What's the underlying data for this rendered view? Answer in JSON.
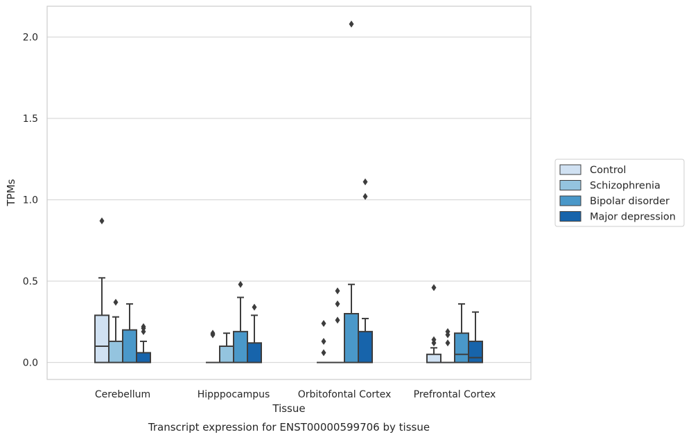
{
  "chart_data": {
    "type": "box",
    "caption": "Transcript expression for ENST00000599706 by tissue",
    "xlabel": "Tissue",
    "ylabel": "TPMs",
    "ylim": [
      -0.1,
      2.19
    ],
    "yticks": [
      0.0,
      0.5,
      1.0,
      1.5,
      2.0
    ],
    "ytick_labels": [
      "0.0",
      "0.5",
      "1.0",
      "1.5",
      "2.0"
    ],
    "grid": "horizontal",
    "legend_position": "right",
    "categories": [
      "Cerebellum",
      "Hipppocampus",
      "Orbitofontal Cortex",
      "Prefrontal Cortex"
    ],
    "series": [
      {
        "name": "Control",
        "color": "#d0e1f2",
        "boxes": [
          {
            "q1": 0.0,
            "median": 0.1,
            "q3": 0.29,
            "whisker_low": 0.0,
            "whisker_high": 0.52,
            "outliers": [
              0.87
            ]
          },
          {
            "q1": 0.0,
            "median": 0.0,
            "q3": 0.0,
            "whisker_low": 0.0,
            "whisker_high": 0.0,
            "outliers": [
              0.17,
              0.18
            ]
          },
          {
            "q1": 0.0,
            "median": 0.0,
            "q3": 0.0,
            "whisker_low": 0.0,
            "whisker_high": 0.0,
            "outliers": [
              0.06,
              0.13,
              0.24
            ]
          },
          {
            "q1": 0.0,
            "median": 0.0,
            "q3": 0.05,
            "whisker_low": 0.0,
            "whisker_high": 0.09,
            "outliers": [
              0.12,
              0.14,
              0.46
            ]
          }
        ]
      },
      {
        "name": "Schizophrenia",
        "color": "#94c4df",
        "boxes": [
          {
            "q1": 0.0,
            "median": 0.0,
            "q3": 0.13,
            "whisker_low": 0.0,
            "whisker_high": 0.28,
            "outliers": [
              0.37
            ]
          },
          {
            "q1": 0.0,
            "median": 0.0,
            "q3": 0.1,
            "whisker_low": 0.0,
            "whisker_high": 0.18,
            "outliers": []
          },
          {
            "q1": 0.0,
            "median": 0.0,
            "q3": 0.0,
            "whisker_low": 0.0,
            "whisker_high": 0.0,
            "outliers": [
              0.26,
              0.36,
              0.44
            ]
          },
          {
            "q1": 0.0,
            "median": 0.0,
            "q3": 0.0,
            "whisker_low": 0.0,
            "whisker_high": 0.0,
            "outliers": [
              0.12,
              0.17,
              0.19
            ]
          }
        ]
      },
      {
        "name": "Bipolar disorder",
        "color": "#4a98c9",
        "boxes": [
          {
            "q1": 0.0,
            "median": 0.0,
            "q3": 0.2,
            "whisker_low": 0.0,
            "whisker_high": 0.36,
            "outliers": []
          },
          {
            "q1": 0.0,
            "median": 0.0,
            "q3": 0.19,
            "whisker_low": 0.0,
            "whisker_high": 0.4,
            "outliers": [
              0.48
            ]
          },
          {
            "q1": 0.0,
            "median": 0.0,
            "q3": 0.3,
            "whisker_low": 0.0,
            "whisker_high": 0.48,
            "outliers": [
              2.08
            ]
          },
          {
            "q1": 0.0,
            "median": 0.05,
            "q3": 0.18,
            "whisker_low": 0.0,
            "whisker_high": 0.36,
            "outliers": []
          }
        ]
      },
      {
        "name": "Major depression",
        "color": "#1764ab",
        "boxes": [
          {
            "q1": 0.0,
            "median": 0.0,
            "q3": 0.06,
            "whisker_low": 0.0,
            "whisker_high": 0.13,
            "outliers": [
              0.19,
              0.21,
              0.22
            ]
          },
          {
            "q1": 0.0,
            "median": 0.0,
            "q3": 0.12,
            "whisker_low": 0.0,
            "whisker_high": 0.29,
            "outliers": [
              0.34
            ]
          },
          {
            "q1": 0.0,
            "median": 0.0,
            "q3": 0.19,
            "whisker_low": 0.0,
            "whisker_high": 0.27,
            "outliers": [
              1.02,
              1.11
            ]
          },
          {
            "q1": 0.0,
            "median": 0.03,
            "q3": 0.13,
            "whisker_low": 0.0,
            "whisker_high": 0.31,
            "outliers": []
          }
        ]
      }
    ]
  }
}
